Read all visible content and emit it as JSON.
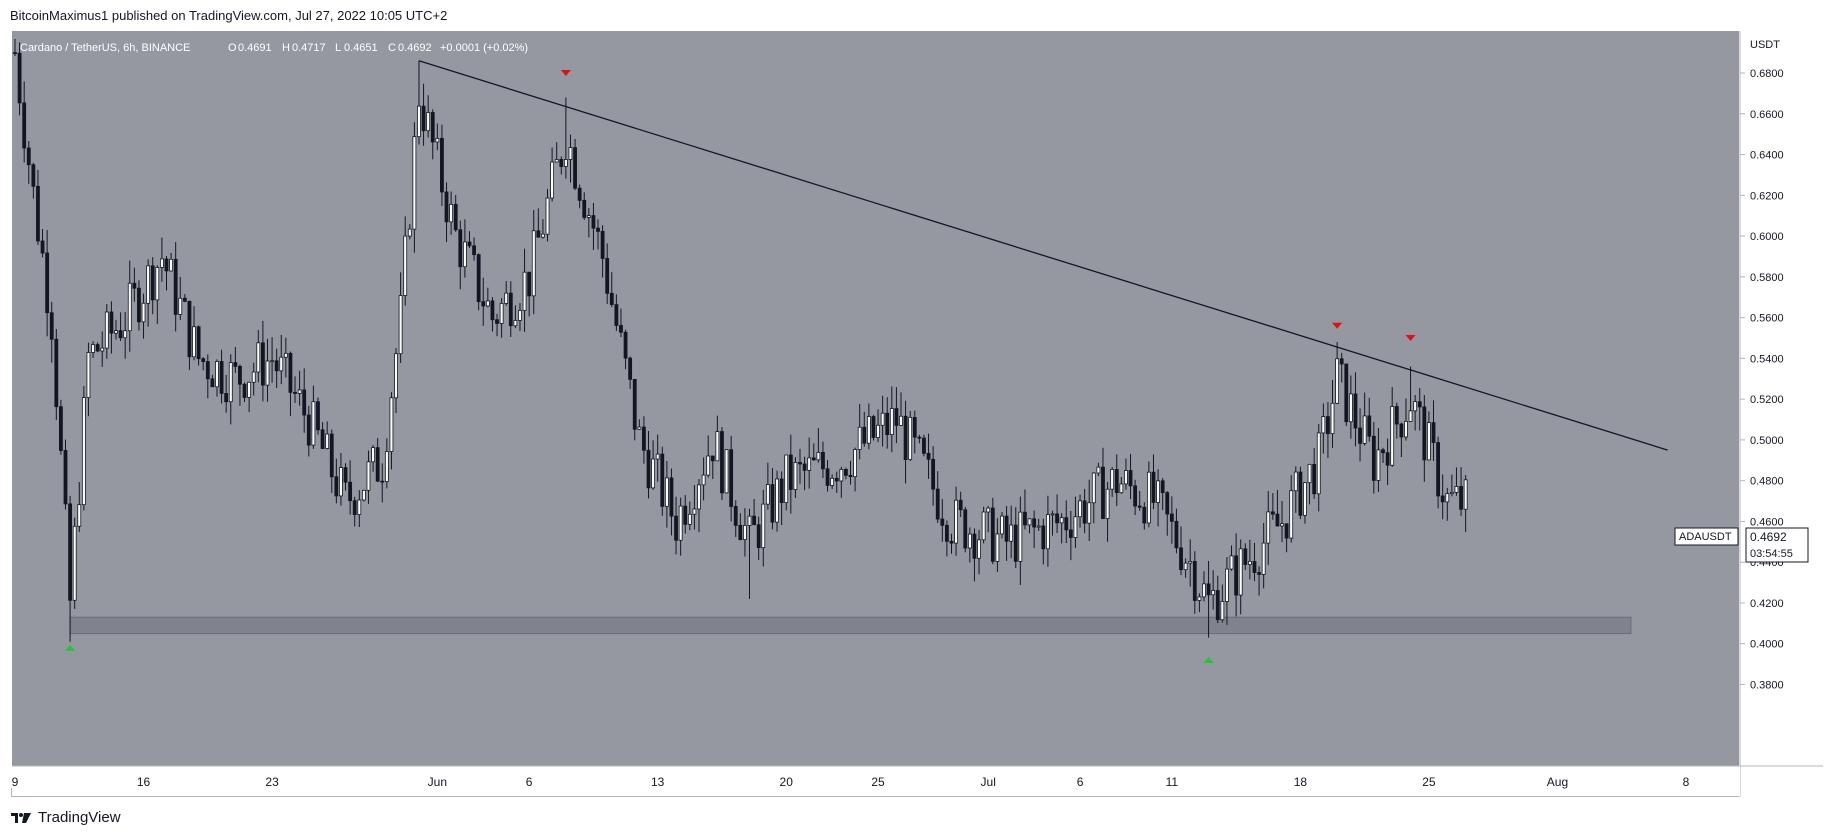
{
  "header": {
    "publisher_line": "BitcoinMaximus1 published on TradingView.com, Jul 27, 2022 10:05 UTC+2"
  },
  "symbol_info": {
    "title": "Cardano / TetherUS, 6h, BINANCE",
    "o_label": "O",
    "o_value": "0.4691",
    "h_label": "H",
    "h_value": "0.4717",
    "l_label": "L",
    "l_value": "0.4651",
    "c_label": "C",
    "c_value": "0.4692",
    "change": "+0.0001 (+0.02%)"
  },
  "price_axis": {
    "currency": "USDT",
    "ticks": [
      "0.6800",
      "0.6600",
      "0.6400",
      "0.6200",
      "0.6000",
      "0.5800",
      "0.5600",
      "0.5400",
      "0.5200",
      "0.5000",
      "0.4800",
      "0.4600",
      "0.4400",
      "0.4200",
      "0.4000",
      "0.3800"
    ]
  },
  "last_price": {
    "symbol": "ADAUSDT",
    "price": "0.4692",
    "countdown": "03:54:55"
  },
  "time_axis": {
    "ticks": [
      "9",
      "16",
      "23",
      "Jun",
      "6",
      "13",
      "20",
      "25",
      "Jul",
      "6",
      "11",
      "18",
      "25",
      "Aug",
      "8"
    ]
  },
  "footer": {
    "brand": "TradingView"
  },
  "colors": {
    "plot_bg": "#9598a1",
    "candle": "#131722",
    "resistance_line": "#131722",
    "support_zone": "#787b86",
    "down_marker": "#e01010",
    "up_marker": "#22c733"
  },
  "chart_data": {
    "type": "candlestick",
    "symbol": "ADAUSDT",
    "timeframe": "6h",
    "ylim": [
      0.36,
      0.7
    ],
    "x_range": [
      "2022-05-09",
      "2022-08-08"
    ],
    "x_ticks": [
      "9",
      "16",
      "23",
      "Jun",
      "6",
      "13",
      "20",
      "25",
      "Jul",
      "6",
      "11",
      "18",
      "25",
      "Aug",
      "8"
    ],
    "y_ticks": [
      0.68,
      0.66,
      0.64,
      0.62,
      0.6,
      0.58,
      0.56,
      0.54,
      0.52,
      0.5,
      0.48,
      0.46,
      0.44,
      0.42,
      0.4,
      0.38
    ],
    "close_path": [
      {
        "date": "2022-05-09",
        "price": 0.69
      },
      {
        "date": "2022-05-10",
        "price": 0.62
      },
      {
        "date": "2022-05-11",
        "price": 0.56
      },
      {
        "date": "2022-05-12",
        "price": 0.42
      },
      {
        "date": "2022-05-13",
        "price": 0.54
      },
      {
        "date": "2022-05-15",
        "price": 0.56
      },
      {
        "date": "2022-05-17",
        "price": 0.59
      },
      {
        "date": "2022-05-19",
        "price": 0.54
      },
      {
        "date": "2022-05-21",
        "price": 0.53
      },
      {
        "date": "2022-05-23",
        "price": 0.54
      },
      {
        "date": "2022-05-25",
        "price": 0.51
      },
      {
        "date": "2022-05-27",
        "price": 0.47
      },
      {
        "date": "2022-05-29",
        "price": 0.49
      },
      {
        "date": "2022-05-30",
        "price": 0.56
      },
      {
        "date": "2022-05-31",
        "price": 0.67
      },
      {
        "date": "2022-06-02",
        "price": 0.6
      },
      {
        "date": "2022-06-04",
        "price": 0.56
      },
      {
        "date": "2022-06-06",
        "price": 0.58
      },
      {
        "date": "2022-06-08",
        "price": 0.65
      },
      {
        "date": "2022-06-10",
        "price": 0.59
      },
      {
        "date": "2022-06-12",
        "price": 0.5
      },
      {
        "date": "2022-06-14",
        "price": 0.46
      },
      {
        "date": "2022-06-16",
        "price": 0.5
      },
      {
        "date": "2022-06-18",
        "price": 0.45
      },
      {
        "date": "2022-06-20",
        "price": 0.48
      },
      {
        "date": "2022-06-23",
        "price": 0.49
      },
      {
        "date": "2022-06-26",
        "price": 0.51
      },
      {
        "date": "2022-06-29",
        "price": 0.46
      },
      {
        "date": "2022-07-02",
        "price": 0.45
      },
      {
        "date": "2022-07-05",
        "price": 0.46
      },
      {
        "date": "2022-07-08",
        "price": 0.48
      },
      {
        "date": "2022-07-10",
        "price": 0.47
      },
      {
        "date": "2022-07-12",
        "price": 0.44
      },
      {
        "date": "2022-07-13",
        "price": 0.42
      },
      {
        "date": "2022-07-15",
        "price": 0.44
      },
      {
        "date": "2022-07-17",
        "price": 0.46
      },
      {
        "date": "2022-07-19",
        "price": 0.49
      },
      {
        "date": "2022-07-20",
        "price": 0.53
      },
      {
        "date": "2022-07-22",
        "price": 0.49
      },
      {
        "date": "2022-07-24",
        "price": 0.52
      },
      {
        "date": "2022-07-26",
        "price": 0.47
      },
      {
        "date": "2022-07-27",
        "price": 0.469
      }
    ],
    "extremes": [
      {
        "date": "2022-05-12",
        "price": 0.401,
        "kind": "wick-low"
      },
      {
        "date": "2022-05-31",
        "price": 0.686,
        "kind": "wick-high"
      },
      {
        "date": "2022-06-08",
        "price": 0.668,
        "kind": "wick-high"
      },
      {
        "date": "2022-06-18",
        "price": 0.422,
        "kind": "wick-low"
      },
      {
        "date": "2022-07-13",
        "price": 0.403,
        "kind": "wick-low"
      },
      {
        "date": "2022-07-20",
        "price": 0.548,
        "kind": "wick-high"
      },
      {
        "date": "2022-07-24",
        "price": 0.536,
        "kind": "wick-high"
      }
    ],
    "resistance_line": {
      "start": {
        "date": "2022-05-31",
        "price": 0.686
      },
      "end": {
        "date": "2022-08-07",
        "price": 0.495
      }
    },
    "support_zone": {
      "from": "2022-05-12",
      "to": "2022-08-05",
      "price_low": 0.405,
      "price_high": 0.413
    },
    "markers": [
      {
        "kind": "down",
        "date": "2022-06-08",
        "price": 0.68
      },
      {
        "kind": "down",
        "date": "2022-07-20",
        "price": 0.556
      },
      {
        "kind": "down",
        "date": "2022-07-24",
        "price": 0.55
      },
      {
        "kind": "up",
        "date": "2022-05-12",
        "price": 0.398
      },
      {
        "kind": "up",
        "date": "2022-07-13",
        "price": 0.392
      }
    ]
  }
}
